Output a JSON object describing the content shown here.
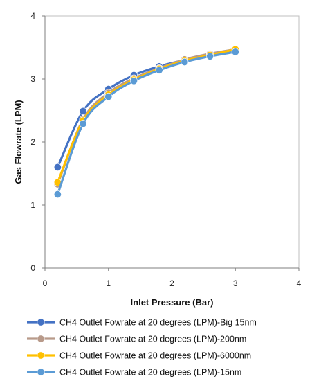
{
  "chart_data": {
    "type": "line",
    "title": "",
    "xlabel": "Inlet Pressure (Bar)",
    "ylabel": "Gas Flowrate (LPM)",
    "xlim": [
      0,
      4
    ],
    "ylim": [
      0,
      4
    ],
    "x_ticks": [
      "0",
      "1",
      "2",
      "3",
      "4"
    ],
    "y_ticks": [
      "0",
      "1",
      "2",
      "3",
      "4"
    ],
    "grid": false,
    "legend_position": "bottom",
    "x": [
      0.2,
      0.6,
      1.0,
      1.4,
      1.8,
      2.2,
      2.6,
      3.0
    ],
    "series": [
      {
        "name": "CH4 Outlet Fowrate at 20 degrees (LPM)-Big 15nm",
        "color": "#4472C4",
        "values": [
          1.6,
          2.49,
          2.84,
          3.06,
          3.2,
          3.3,
          3.39,
          3.46
        ]
      },
      {
        "name": "CH4 Outlet Fowrate at 20 degrees (LPM)-200nm",
        "color": "#B89A8A",
        "values": [
          1.33,
          2.36,
          2.78,
          3.01,
          3.17,
          3.31,
          3.4,
          3.47
        ]
      },
      {
        "name": "CH4 Outlet Fowrate at 20 degrees (LPM)-6000nm",
        "color": "#FFC000",
        "values": [
          1.36,
          2.34,
          2.75,
          2.99,
          3.16,
          3.29,
          3.38,
          3.47
        ]
      },
      {
        "name": "CH4 Outlet Fowrate at 20 degrees (LPM)-15nm",
        "color": "#5B9BD5",
        "values": [
          1.17,
          2.29,
          2.72,
          2.97,
          3.14,
          3.27,
          3.36,
          3.43
        ]
      }
    ]
  }
}
